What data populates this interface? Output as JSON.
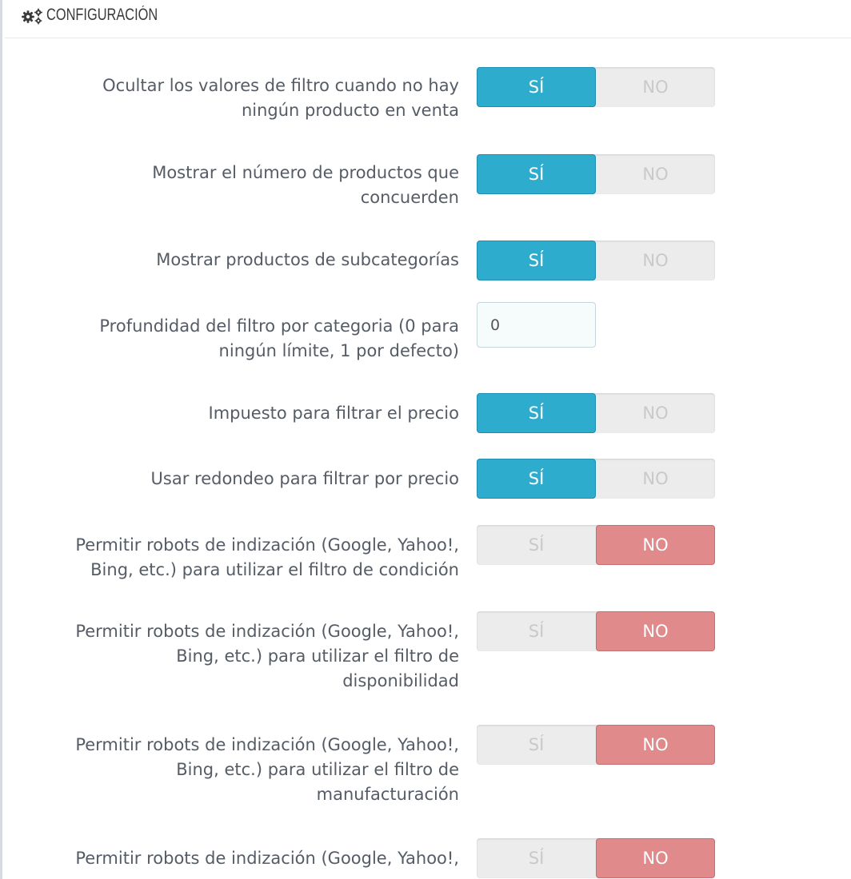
{
  "header": {
    "title": "CONFIGURACIÓN",
    "icon": "gears-icon"
  },
  "toggle_labels": {
    "yes": "SÍ",
    "no": "NO"
  },
  "colors": {
    "yes_active": "#2eacce",
    "no_active": "#e08a8b",
    "inactive": "#ececec"
  },
  "settings": [
    {
      "label_lines": [
        "Ocultar los valores de filtro cuando no hay",
        "ningún producto en venta"
      ],
      "type": "toggle",
      "value": "SÍ"
    },
    {
      "label_lines": [
        "Mostrar el número de productos que",
        "concuerden"
      ],
      "type": "toggle",
      "value": "SÍ"
    },
    {
      "label_lines": [
        "Mostrar productos de subcategorías"
      ],
      "type": "toggle",
      "value": "SÍ"
    },
    {
      "label_lines": [
        "Profundidad del filtro por categoria (0 para",
        "ningún límite, 1 por defecto)"
      ],
      "type": "text",
      "value": "0"
    },
    {
      "label_lines": [
        "Impuesto para filtrar el precio"
      ],
      "type": "toggle",
      "value": "SÍ"
    },
    {
      "label_lines": [
        "Usar redondeo para filtrar por precio"
      ],
      "type": "toggle",
      "value": "SÍ"
    },
    {
      "label_lines": [
        "Permitir robots de indización (Google, Yahoo!,",
        "Bing, etc.) para utilizar el filtro de condición"
      ],
      "type": "toggle",
      "value": "NO"
    },
    {
      "label_lines": [
        "Permitir robots de indización (Google, Yahoo!,",
        "Bing, etc.) para utilizar el filtro de",
        "disponibilidad"
      ],
      "type": "toggle",
      "value": "NO"
    },
    {
      "label_lines": [
        "Permitir robots de indización (Google, Yahoo!,",
        "Bing, etc.) para utilizar el filtro de",
        "manufacturación"
      ],
      "type": "toggle",
      "value": "NO"
    },
    {
      "label_lines": [
        "Permitir robots de indización (Google, Yahoo!,"
      ],
      "type": "toggle",
      "value": "NO"
    }
  ]
}
